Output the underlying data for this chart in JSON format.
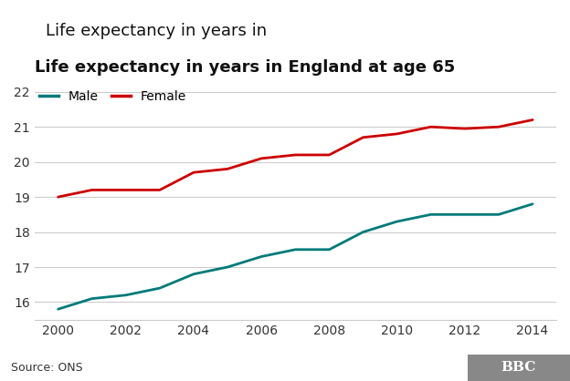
{
  "title": "Life expectancy in years in England at age 65",
  "title_bold_part": "England at age 65",
  "source": "Source: ONS",
  "bbc_logo": "BBC",
  "years": [
    2000,
    2001,
    2002,
    2003,
    2004,
    2005,
    2006,
    2007,
    2008,
    2009,
    2010,
    2011,
    2012,
    2013,
    2014
  ],
  "male": [
    15.8,
    16.1,
    16.2,
    16.4,
    16.8,
    17.0,
    17.3,
    17.5,
    17.5,
    18.0,
    18.3,
    18.5,
    18.5,
    18.5,
    18.8
  ],
  "female": [
    19.0,
    19.2,
    19.2,
    19.2,
    19.7,
    19.8,
    20.1,
    20.2,
    20.2,
    20.7,
    20.8,
    21.0,
    20.95,
    21.0,
    21.2
  ],
  "male_color": "#007A7A",
  "female_color": "#CC0000",
  "background_color": "#ffffff",
  "grid_color": "#cccccc",
  "ylim": [
    15.5,
    22.2
  ],
  "yticks": [
    16,
    17,
    18,
    19,
    20,
    21,
    22
  ],
  "xticks": [
    2000,
    2002,
    2004,
    2006,
    2008,
    2010,
    2012,
    2014
  ],
  "line_width": 2.0,
  "legend_male": "Male",
  "legend_female": "Female",
  "footer_color": "#f0f0f0",
  "footer_text_color": "#333333"
}
